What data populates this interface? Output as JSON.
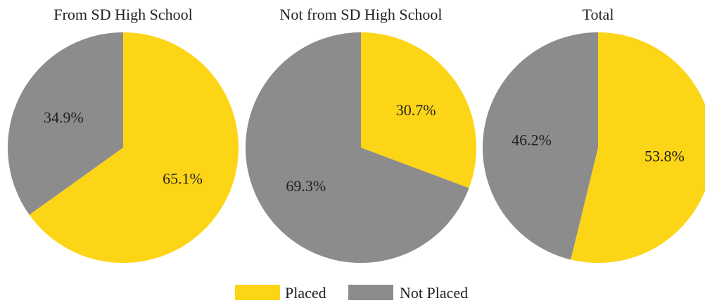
{
  "chart_data": [
    {
      "type": "pie",
      "title": "From SD High School",
      "slices": [
        {
          "name": "Placed",
          "value": 65.1,
          "label": "65.1%"
        },
        {
          "name": "Not Placed",
          "value": 34.9,
          "label": "34.9%"
        }
      ]
    },
    {
      "type": "pie",
      "title": "Not from SD High School",
      "slices": [
        {
          "name": "Placed",
          "value": 30.7,
          "label": "30.7%"
        },
        {
          "name": "Not Placed",
          "value": 69.3,
          "label": "69.3%"
        }
      ]
    },
    {
      "type": "pie",
      "title": "Total",
      "slices": [
        {
          "name": "Placed",
          "value": 53.8,
          "label": "53.8%"
        },
        {
          "name": "Not Placed",
          "value": 46.2,
          "label": "46.2%"
        }
      ]
    }
  ],
  "legend": {
    "placement": "bottom-center",
    "items": [
      {
        "label": "Placed",
        "color": "#FDD517"
      },
      {
        "label": "Not Placed",
        "color": "#8C8C8C"
      }
    ]
  }
}
